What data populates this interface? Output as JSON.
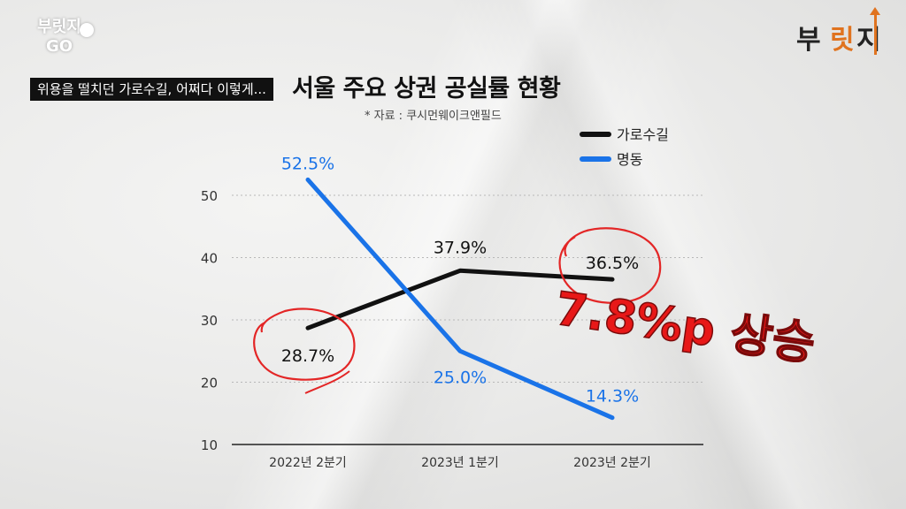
{
  "channel": {
    "logo_line1": "부릿지",
    "logo_line2": "GO"
  },
  "brand": {
    "part1": "부",
    "part2": "릿",
    "part3": "지",
    "accent": "#e0731f"
  },
  "caption": "위용을 떨치던 가로수길, 어쩌다 이렇게...",
  "chart_data": {
    "type": "line",
    "title": "서울 주요 상권 공실률 현황",
    "subtitle": "* 자료 : 쿠시먼웨이크앤필드",
    "categories": [
      "2022년 2분기",
      "2023년 1분기",
      "2023년 2분기"
    ],
    "y_ticks": [
      10,
      20,
      30,
      40,
      50
    ],
    "ylim": [
      10,
      50
    ],
    "grid": "horizontal dotted",
    "legend_position": "top-right",
    "series": [
      {
        "name": "가로수길",
        "color": "#111111",
        "values": [
          28.7,
          37.9,
          36.5
        ],
        "labels": [
          "28.7%",
          "37.9%",
          "36.5%"
        ]
      },
      {
        "name": "명동",
        "color": "#1a73e8",
        "values": [
          52.5,
          25.0,
          14.3
        ],
        "labels": [
          "52.5%",
          "25.0%",
          "14.3%"
        ]
      }
    ],
    "annotation": {
      "text": "7.8%p 상승",
      "color": "#e81818"
    }
  }
}
